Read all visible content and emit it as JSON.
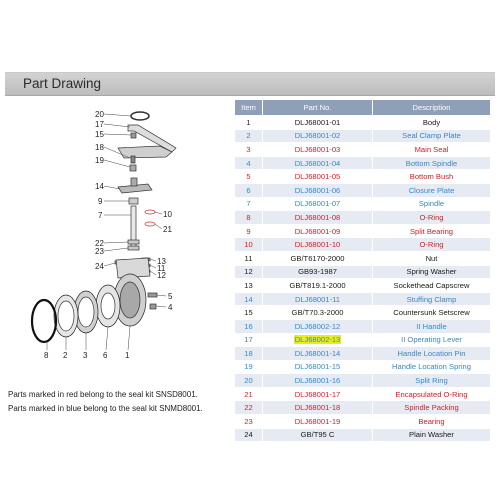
{
  "header": {
    "title": "Part Drawing"
  },
  "table": {
    "columns": [
      "Item",
      "Part No.",
      "Description"
    ],
    "rows": [
      {
        "item": "1",
        "part_no": "DLJ68001-01",
        "description": "Body",
        "color": "black"
      },
      {
        "item": "2",
        "part_no": "DLJ68001-02",
        "description": "Seal Clamp Plate",
        "color": "blue"
      },
      {
        "item": "3",
        "part_no": "DLJ68001-03",
        "description": "Main Seal",
        "color": "red"
      },
      {
        "item": "4",
        "part_no": "DLJ68001-04",
        "description": "Bottom Spindle",
        "color": "blue"
      },
      {
        "item": "5",
        "part_no": "DLJ68001-05",
        "description": "Bottom Bush",
        "color": "red"
      },
      {
        "item": "6",
        "part_no": "DLJ68001-06",
        "description": "Closure Plate",
        "color": "blue"
      },
      {
        "item": "7",
        "part_no": "DLJ68001-07",
        "description": "Spindle",
        "color": "blue"
      },
      {
        "item": "8",
        "part_no": "DLJ68001-08",
        "description": "O-Ring",
        "color": "red"
      },
      {
        "item": "9",
        "part_no": "DLJ68001-09",
        "description": "Split Bearing",
        "color": "red"
      },
      {
        "item": "10",
        "part_no": "DLJ68001-10",
        "description": "O-Ring",
        "color": "red"
      },
      {
        "item": "11",
        "part_no": "GB/T6170-2000",
        "description": "Nut",
        "color": "black"
      },
      {
        "item": "12",
        "part_no": "GB93-1987",
        "description": "Spring Washer",
        "color": "black"
      },
      {
        "item": "13",
        "part_no": "GB/T819.1-2000",
        "description": "Sockethead Capscrew",
        "color": "black"
      },
      {
        "item": "14",
        "part_no": "DLJ68001-11",
        "description": "Stuffing Clamp",
        "color": "blue"
      },
      {
        "item": "15",
        "part_no": "GB/T70.3-2000",
        "description": "Countersunk Setscrew",
        "color": "black"
      },
      {
        "item": "16",
        "part_no": "DLJ68002-12",
        "description": "II Handle",
        "color": "blue"
      },
      {
        "item": "17",
        "part_no": "DLJ68002-13",
        "description": "II Operating Lever",
        "color": "blue",
        "highlight": true
      },
      {
        "item": "18",
        "part_no": "DLJ68001-14",
        "description": "Handle Location Pin",
        "color": "blue"
      },
      {
        "item": "19",
        "part_no": "DLJ68001-15",
        "description": "Handle Location Spring",
        "color": "blue"
      },
      {
        "item": "20",
        "part_no": "DLJ68001-16",
        "description": "Split Ring",
        "color": "blue"
      },
      {
        "item": "21",
        "part_no": "DLJ68001-17",
        "description": "Encapsulated O-Ring",
        "color": "red"
      },
      {
        "item": "22",
        "part_no": "DLJ68001-18",
        "description": "Spindle Packing",
        "color": "red"
      },
      {
        "item": "23",
        "part_no": "DLJ68001-19",
        "description": "Bearing",
        "color": "red"
      },
      {
        "item": "24",
        "part_no": "GB/T95 C",
        "description": "Plain Washer",
        "color": "black"
      }
    ]
  },
  "callouts": {
    "left": [
      "20",
      "17",
      "15",
      "18",
      "19",
      "14",
      "9",
      "7",
      "22",
      "23",
      "24"
    ],
    "right": [
      "10",
      "21",
      "13",
      "11",
      "12",
      "5",
      "4"
    ],
    "bottom": [
      "8",
      "2",
      "3",
      "6",
      "1"
    ]
  },
  "notes": {
    "red": "Parts marked in red  belong to the seal kit SNSD8001.",
    "blue": "Parts marked in blue  belong to the seal kit SNMD8001."
  },
  "colors": {
    "red": "#d0202a",
    "blue": "#3a87c4",
    "header_bg": "#8f9fb7",
    "row_alt": "#e6ebf3",
    "highlight": "#e8ee1a"
  }
}
